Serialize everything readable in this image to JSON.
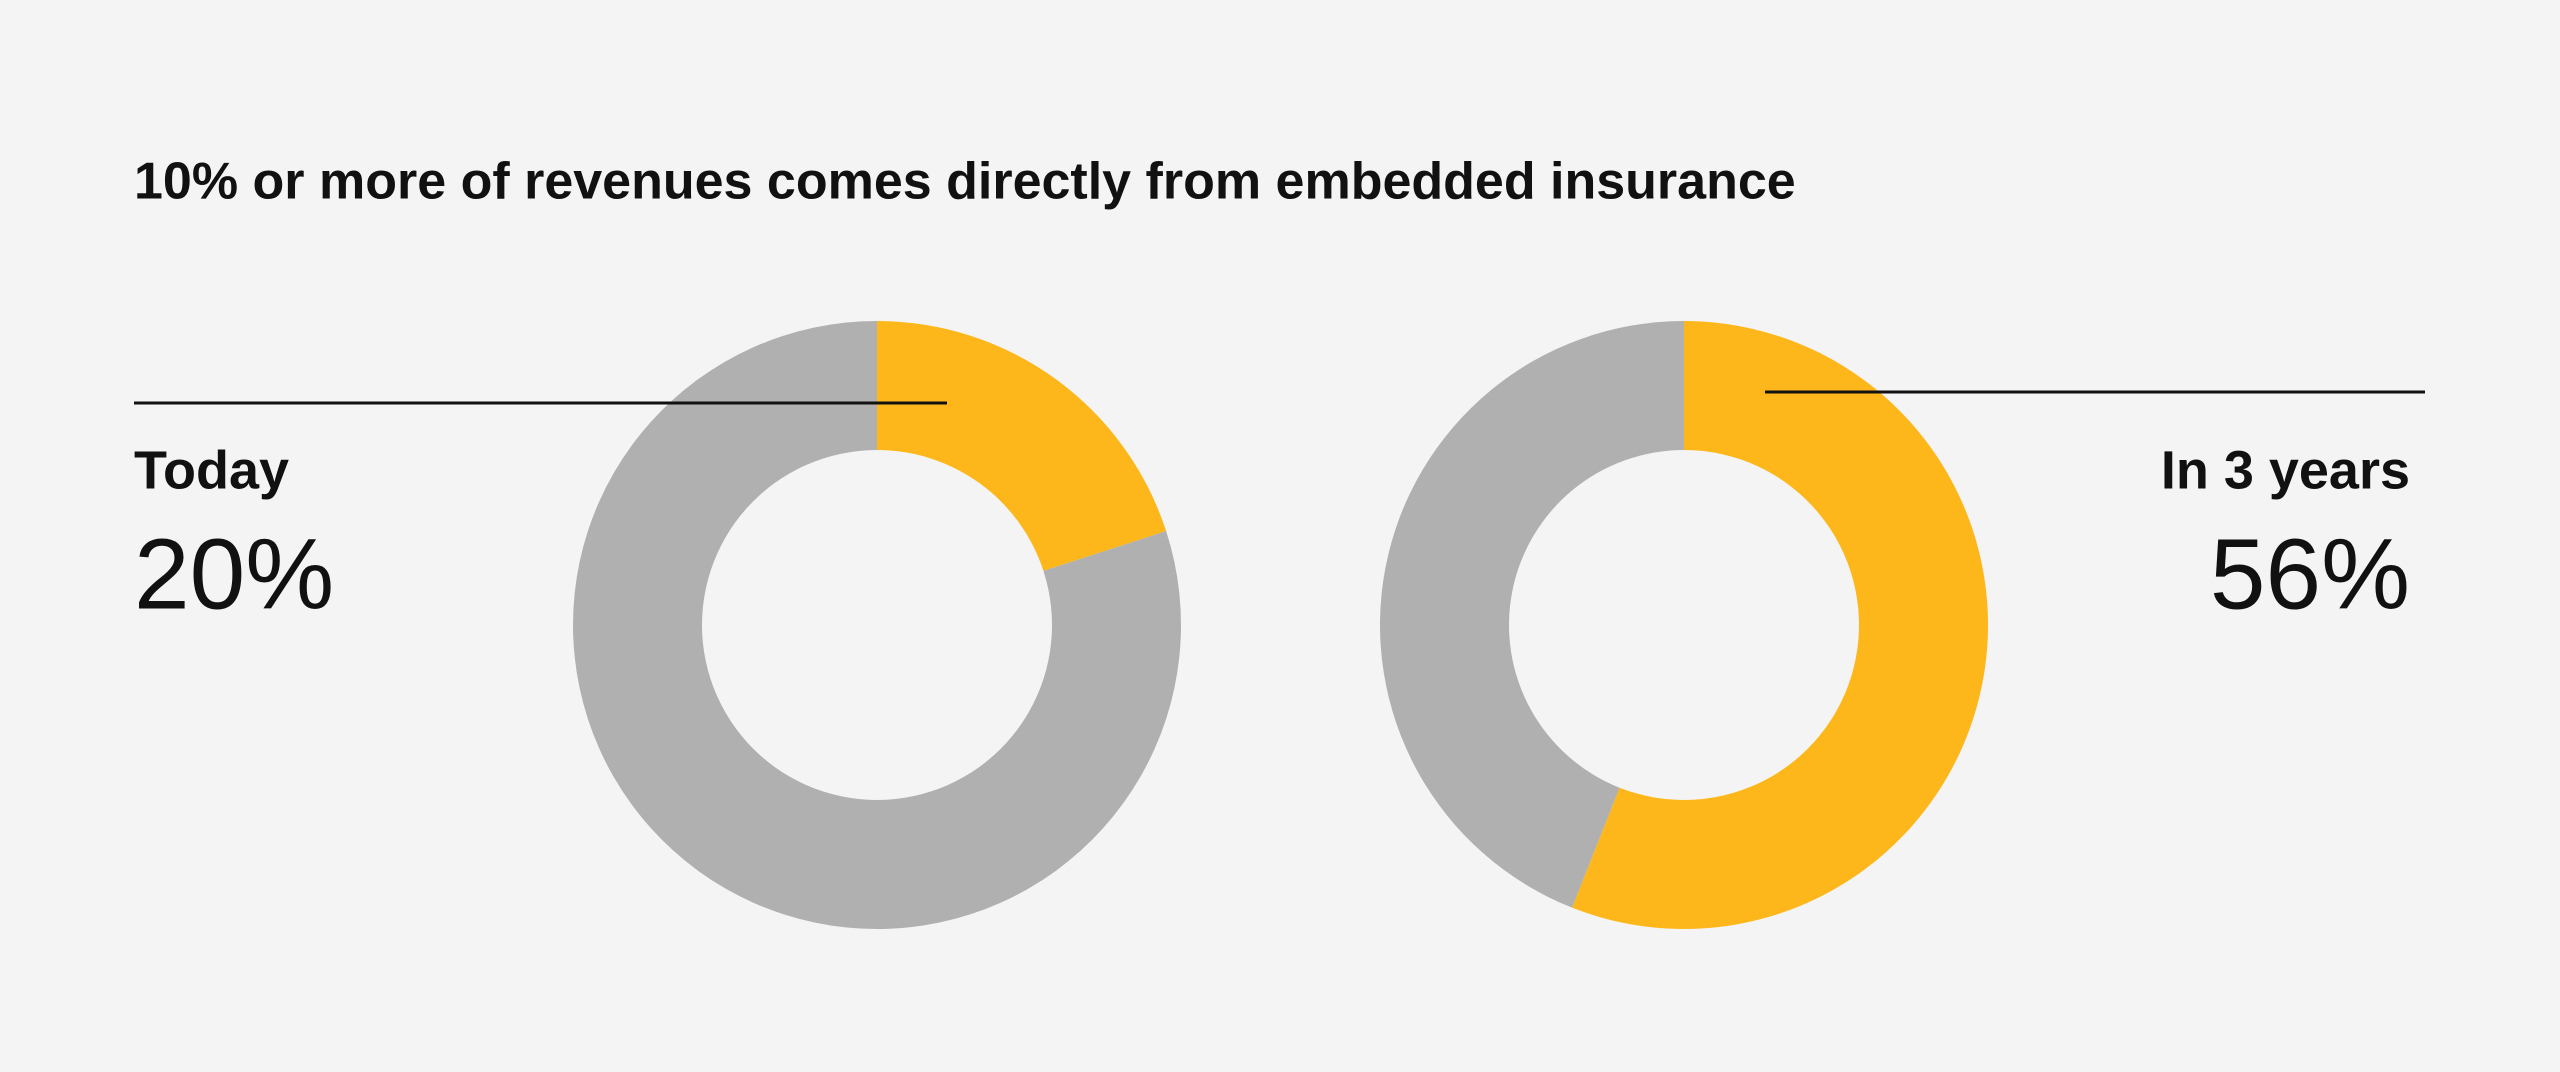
{
  "title": "10% or more of revenues comes directly from embedded insurance",
  "chart_data": [
    {
      "type": "donut",
      "label": "Today",
      "values": [
        20,
        80
      ],
      "value_labels": [
        "20%",
        null
      ],
      "colors": [
        "#fdb71a",
        "#b0b0b0"
      ]
    },
    {
      "type": "donut",
      "label": "In 3 years",
      "values": [
        56,
        44
      ],
      "value_labels": [
        "56%",
        null
      ],
      "colors": [
        "#fdb71a",
        "#b0b0b0"
      ]
    }
  ]
}
